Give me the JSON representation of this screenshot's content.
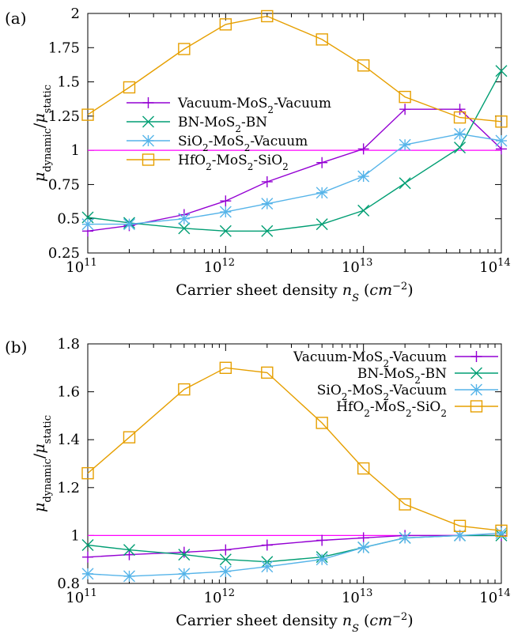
{
  "chart_data": [
    {
      "panel_label": "(a)",
      "type": "line",
      "xscale": "log",
      "xlabel": "Carrier sheet density n_S (cm^-2)",
      "ylabel": "μ_dynamic/μ_static",
      "xlim": [
        100000000000.0,
        100000000000000.0
      ],
      "ylim": [
        0.25,
        2.0
      ],
      "x_ticks": [
        {
          "base": "10",
          "exp": "11",
          "value": 100000000000.0
        },
        {
          "base": "10",
          "exp": "12",
          "value": 1000000000000.0
        },
        {
          "base": "10",
          "exp": "13",
          "value": 10000000000000.0
        },
        {
          "base": "10",
          "exp": "14",
          "value": 100000000000000.0
        }
      ],
      "y_ticks": [
        "0.25",
        "0.5",
        "0.75",
        "1",
        "1.25",
        "1.5",
        "1.75",
        "2"
      ],
      "reference_line": {
        "y": 1,
        "color": "#ff00ff"
      },
      "legend_position": "left",
      "series": [
        {
          "name": "Vacuum-MoS2-Vacuum",
          "marker": "plus",
          "color": "#9400d3",
          "x": [
            100000000000.0,
            200000000000.0,
            500000000000.0,
            1000000000000.0,
            2000000000000.0,
            5000000000000.0,
            10000000000000.0,
            20000000000000.0,
            50000000000000.0,
            100000000000000.0
          ],
          "y": [
            0.41,
            0.45,
            0.53,
            0.63,
            0.77,
            0.91,
            1.01,
            1.3,
            1.3,
            1.01
          ]
        },
        {
          "name": "BN-MoS2-BN",
          "marker": "x",
          "color": "#009e73",
          "x": [
            100000000000.0,
            200000000000.0,
            500000000000.0,
            1000000000000.0,
            2000000000000.0,
            5000000000000.0,
            10000000000000.0,
            20000000000000.0,
            50000000000000.0,
            100000000000000.0
          ],
          "y": [
            0.51,
            0.47,
            0.43,
            0.41,
            0.41,
            0.46,
            0.56,
            0.76,
            1.02,
            1.58
          ]
        },
        {
          "name": "SiO2-MoS2-Vacuum",
          "marker": "star",
          "color": "#56b4e9",
          "x": [
            100000000000.0,
            200000000000.0,
            500000000000.0,
            1000000000000.0,
            2000000000000.0,
            5000000000000.0,
            10000000000000.0,
            20000000000000.0,
            50000000000000.0,
            100000000000000.0
          ],
          "y": [
            0.46,
            0.46,
            0.5,
            0.55,
            0.61,
            0.69,
            0.81,
            1.04,
            1.12,
            1.07
          ]
        },
        {
          "name": "HfO2-MoS2-SiO2",
          "marker": "square",
          "color": "#e69f00",
          "x": [
            100000000000.0,
            200000000000.0,
            500000000000.0,
            1000000000000.0,
            2000000000000.0,
            5000000000000.0,
            10000000000000.0,
            20000000000000.0,
            50000000000000.0,
            100000000000000.0
          ],
          "y": [
            1.26,
            1.46,
            1.74,
            1.92,
            1.98,
            1.81,
            1.62,
            1.39,
            1.24,
            1.21
          ]
        }
      ]
    },
    {
      "panel_label": "(b)",
      "type": "line",
      "xscale": "log",
      "xlabel": "Carrier sheet density n_S (cm^-2)",
      "ylabel": "μ_dynamic/μ_static",
      "xlim": [
        100000000000.0,
        100000000000000.0
      ],
      "ylim": [
        0.8,
        1.8
      ],
      "x_ticks": [
        {
          "base": "10",
          "exp": "11",
          "value": 100000000000.0
        },
        {
          "base": "10",
          "exp": "12",
          "value": 1000000000000.0
        },
        {
          "base": "10",
          "exp": "13",
          "value": 10000000000000.0
        },
        {
          "base": "10",
          "exp": "14",
          "value": 100000000000000.0
        }
      ],
      "y_ticks": [
        "0.8",
        "1",
        "1.2",
        "1.4",
        "1.6",
        "1.8"
      ],
      "reference_line": {
        "y": 1,
        "color": "#ff00ff"
      },
      "legend_position": "top-right",
      "series": [
        {
          "name": "Vacuum-MoS2-Vacuum",
          "marker": "plus",
          "color": "#9400d3",
          "x": [
            100000000000.0,
            200000000000.0,
            500000000000.0,
            1000000000000.0,
            2000000000000.0,
            5000000000000.0,
            10000000000000.0,
            20000000000000.0,
            50000000000000.0,
            100000000000000.0
          ],
          "y": [
            0.91,
            0.92,
            0.93,
            0.94,
            0.96,
            0.98,
            0.99,
            1.0,
            1.0,
            1.0
          ]
        },
        {
          "name": "BN-MoS2-BN",
          "marker": "x",
          "color": "#009e73",
          "x": [
            100000000000.0,
            200000000000.0,
            500000000000.0,
            1000000000000.0,
            2000000000000.0,
            5000000000000.0,
            10000000000000.0,
            20000000000000.0,
            50000000000000.0,
            100000000000000.0
          ],
          "y": [
            0.96,
            0.94,
            0.92,
            0.9,
            0.89,
            0.91,
            0.95,
            0.99,
            1.0,
            1.0
          ]
        },
        {
          "name": "SiO2-MoS2-Vacuum",
          "marker": "star",
          "color": "#56b4e9",
          "x": [
            100000000000.0,
            200000000000.0,
            500000000000.0,
            1000000000000.0,
            2000000000000.0,
            5000000000000.0,
            10000000000000.0,
            20000000000000.0,
            50000000000000.0,
            100000000000000.0
          ],
          "y": [
            0.84,
            0.83,
            0.84,
            0.85,
            0.87,
            0.9,
            0.95,
            0.99,
            1.0,
            1.01
          ]
        },
        {
          "name": "HfO2-MoS2-SiO2",
          "marker": "square",
          "color": "#e69f00",
          "x": [
            100000000000.0,
            200000000000.0,
            500000000000.0,
            1000000000000.0,
            2000000000000.0,
            5000000000000.0,
            10000000000000.0,
            20000000000000.0,
            50000000000000.0,
            100000000000000.0
          ],
          "y": [
            1.26,
            1.41,
            1.61,
            1.7,
            1.68,
            1.47,
            1.28,
            1.13,
            1.04,
            1.02
          ]
        }
      ]
    }
  ]
}
